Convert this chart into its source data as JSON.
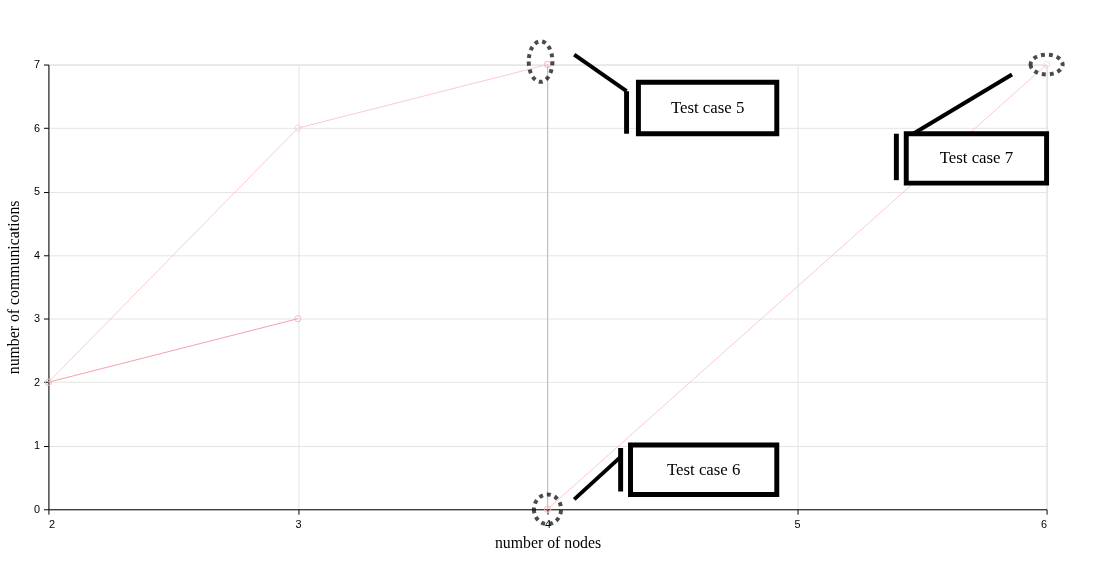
{
  "chart_data": {
    "type": "line",
    "xlabel": "number of nodes",
    "ylabel": "number of communications",
    "xlim": [
      2,
      6
    ],
    "ylim": [
      0,
      7
    ],
    "xticks": [
      2,
      3,
      4,
      5,
      6
    ],
    "yticks": [
      0,
      1,
      2,
      3,
      4,
      5,
      6,
      7
    ],
    "grid": true,
    "marker": "circle",
    "line_style": "solid",
    "series": [
      {
        "color": "#f4a0a8",
        "x": [
          2,
          3
        ],
        "values": [
          2,
          3
        ]
      },
      {
        "color": "#fcc8cc",
        "x": [
          2,
          3,
          4
        ],
        "values": [
          2,
          6,
          7
        ]
      },
      {
        "color": "#f4a8b0",
        "x": [
          4,
          4
        ],
        "values": [
          7,
          0
        ]
      },
      {
        "color": "#fcc8cc",
        "x": [
          4,
          6
        ],
        "values": [
          0,
          7
        ]
      }
    ],
    "annotations": [
      "Test case 5",
      "Test case 6",
      "Test case 7"
    ]
  }
}
